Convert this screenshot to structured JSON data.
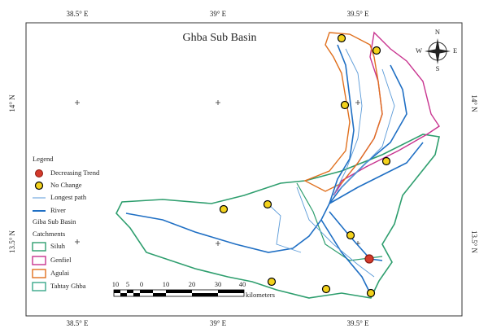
{
  "title": "Ghba Sub Basin",
  "graticule": {
    "top": [
      "38.5° E",
      "39° E",
      "39.5° E"
    ],
    "bottom": [
      "38.5° E",
      "39° E",
      "39.5° E"
    ],
    "left": [
      "14° N",
      "13.5° N"
    ],
    "right": [
      "14° N",
      "13.5° N"
    ]
  },
  "compass": [
    "N",
    "E",
    "S",
    "W"
  ],
  "legend": {
    "title": "Legend",
    "items": [
      "Decreasing Trend",
      "No Change",
      "Longest path",
      "River"
    ],
    "subtitle": "Giba Sub Basin",
    "catchments_title": "Catchments",
    "catchments": [
      "Siluh",
      "Genfiel",
      "Agulai",
      "Tahtay Ghba"
    ]
  },
  "scale_bar": {
    "labels": [
      "10",
      "5",
      "0",
      "10",
      "20",
      "30",
      "40"
    ],
    "unit": "kilometers"
  }
}
